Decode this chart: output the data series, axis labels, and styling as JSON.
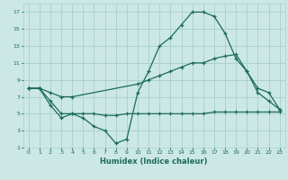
{
  "xlabel": "Humidex (Indice chaleur)",
  "bg_color": "#cce8e4",
  "grid_color": "#aad4cc",
  "line_color": "#1a6b5a",
  "xlim": [
    -0.5,
    23.5
  ],
  "ylim": [
    1,
    18
  ],
  "xticks": [
    0,
    1,
    2,
    3,
    4,
    5,
    6,
    7,
    8,
    9,
    10,
    11,
    12,
    13,
    14,
    15,
    16,
    17,
    18,
    19,
    20,
    21,
    22,
    23
  ],
  "yticks": [
    1,
    3,
    5,
    7,
    9,
    11,
    13,
    15,
    17
  ],
  "s1_x": [
    0,
    1,
    2,
    3,
    4,
    5,
    6,
    7,
    8,
    9,
    10,
    11,
    12,
    13,
    14,
    15,
    16,
    17,
    18,
    19,
    20,
    21,
    22,
    23
  ],
  "s1_y": [
    8,
    8,
    6,
    4.5,
    5,
    4.5,
    3.5,
    3,
    1.5,
    2,
    7.5,
    10,
    13,
    14,
    15.5,
    17,
    17,
    16.5,
    14.5,
    11.5,
    10,
    7.5,
    6.5,
    5.5
  ],
  "s2_x": [
    0,
    1,
    2,
    3,
    4,
    10,
    11,
    12,
    13,
    14,
    15,
    16,
    17,
    18,
    19,
    20,
    21,
    22,
    23
  ],
  "s2_y": [
    8,
    8,
    7.5,
    7,
    7,
    8.5,
    9,
    9.5,
    10,
    10.5,
    11,
    11,
    11.5,
    11.8,
    12,
    10,
    8,
    7.5,
    5.5
  ],
  "s3_x": [
    0,
    1,
    2,
    3,
    4,
    5,
    6,
    7,
    8,
    9,
    10,
    11,
    12,
    13,
    14,
    15,
    16,
    17,
    18,
    19,
    20,
    21,
    22,
    23
  ],
  "s3_y": [
    8,
    8,
    6.5,
    5,
    5,
    5,
    5,
    4.8,
    4.8,
    5,
    5,
    5,
    5,
    5,
    5,
    5,
    5,
    5.2,
    5.2,
    5.2,
    5.2,
    5.2,
    5.2,
    5.2
  ]
}
